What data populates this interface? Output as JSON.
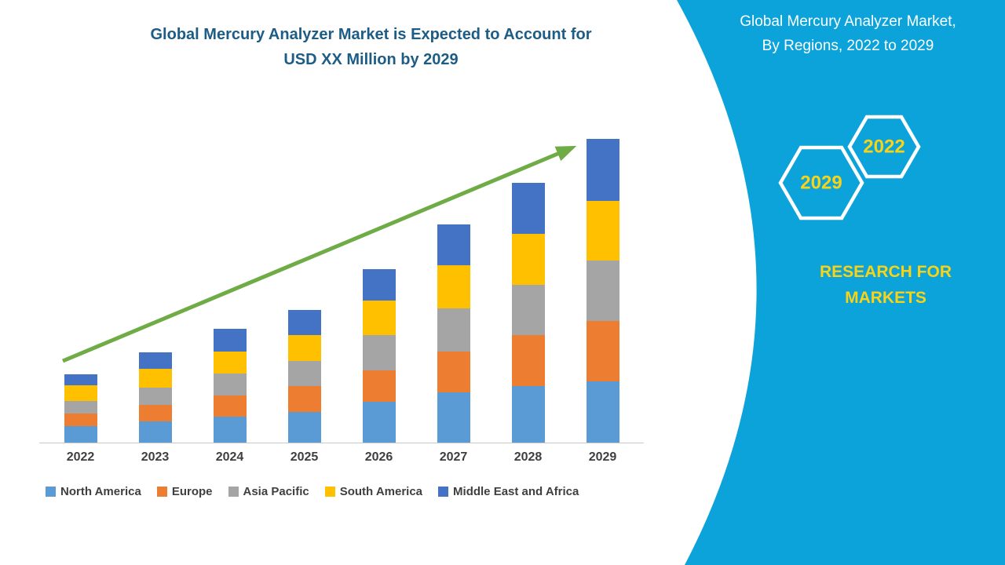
{
  "main_title": {
    "line1": "Global Mercury Analyzer Market is Expected to Account for",
    "line2": "USD XX Million by 2029"
  },
  "sidebar": {
    "title_line1": "Global Mercury Analyzer Market,",
    "title_line2": "By Regions, 2022 to 2029",
    "hexagon_back_label": "2022",
    "hexagon_front_label": "2029",
    "brand_line1": "RESEARCH FOR",
    "brand_line2": "MARKETS",
    "bg_color": "#0ba3d9",
    "text_color": "#ffffff",
    "accent_color": "#f9d316"
  },
  "chart_data": {
    "type": "bar",
    "stacked": true,
    "title": "Global Mercury Analyzer Market is Expected to Account for USD XX Million by 2029",
    "unit": "USD Million",
    "categories": [
      "2022",
      "2023",
      "2024",
      "2025",
      "2026",
      "2027",
      "2028",
      "2029"
    ],
    "series": [
      {
        "name": "North America",
        "color": "#5B9BD5",
        "values": [
          5.5,
          7,
          8.5,
          10,
          13,
          16,
          18,
          19.5
        ]
      },
      {
        "name": "Europe",
        "color": "#ED7D31",
        "values": [
          4,
          5,
          6.5,
          8,
          10,
          13,
          16,
          19
        ]
      },
      {
        "name": "Asia Pacific",
        "color": "#A5A5A5",
        "values": [
          3.8,
          5.5,
          7,
          8,
          11,
          13.5,
          16,
          19
        ]
      },
      {
        "name": "South America",
        "color": "#FFC000",
        "values": [
          5,
          6,
          7,
          8,
          11,
          13.5,
          16,
          19
        ]
      },
      {
        "name": "Middle East and Africa",
        "color": "#4472C4",
        "values": [
          3.5,
          5.3,
          7,
          8,
          10,
          13,
          16,
          19.5
        ]
      }
    ],
    "xlabel": "",
    "ylabel": "",
    "ylim": [
      0,
      110
    ],
    "grid": false,
    "legend_position": "bottom",
    "trend_arrow": {
      "color": "#6FAC46",
      "direction": "up-right"
    }
  }
}
